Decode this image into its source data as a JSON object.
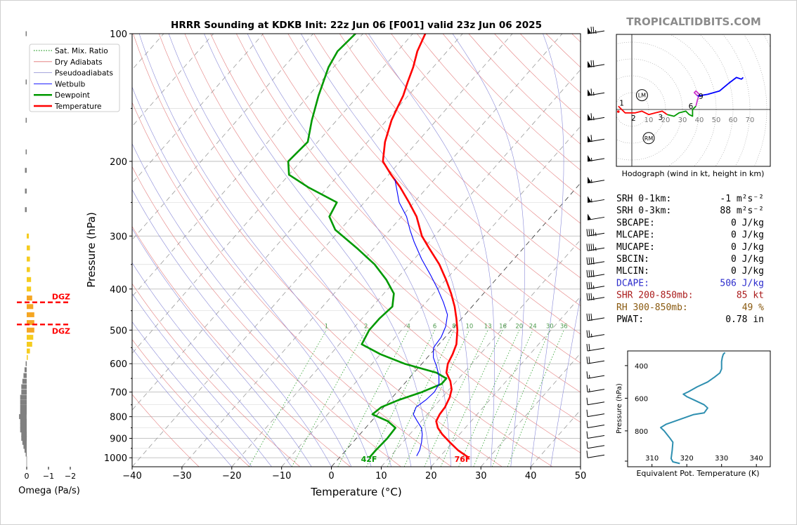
{
  "title": "HRRR Sounding at KDKB Init: 22z Jun 06 [F001] valid 23z Jun 06 2025",
  "watermark": "TROPICALTIDBITS.COM",
  "chart_data": [
    {
      "type": "skew-t",
      "title": "HRRR Sounding at KDKB Init: 22z Jun 06 [F001] valid 23z Jun 06 2025",
      "xlabel": "Temperature (°C)",
      "ylabel": "Pressure (hPa)",
      "xlim": [
        -40,
        50
      ],
      "ylim": [
        1050,
        100
      ],
      "x_ticks": [
        -40,
        -30,
        -20,
        -10,
        0,
        10,
        20,
        30,
        40,
        50
      ],
      "x_tick_labels": [
        "−40",
        "−30",
        "−20",
        "−10",
        "0",
        "10",
        "20",
        "30",
        "40",
        "50"
      ],
      "y_ticks": [
        100,
        200,
        300,
        400,
        500,
        600,
        700,
        800,
        900,
        1000
      ],
      "y_scale": "log",
      "legend": {
        "placement": "top-left",
        "entries": [
          {
            "label": "Sat. Mix. Ratio",
            "color": "#2ca02c",
            "style": "dotted"
          },
          {
            "label": "Dry Adiabats",
            "color": "#e07070",
            "style": "solid"
          },
          {
            "label": "Pseudoadiabats",
            "color": "#9a9ad8",
            "style": "solid"
          },
          {
            "label": "Wetbulb",
            "color": "#0000ff",
            "style": "solid"
          },
          {
            "label": "Dewpoint",
            "color": "#009900",
            "style": "bold"
          },
          {
            "label": "Temperature",
            "color": "#ff0000",
            "style": "bold"
          }
        ]
      },
      "series": [
        {
          "name": "Temperature",
          "color": "#ff0000",
          "points": [
            [
              1000,
              26
            ],
            [
              960,
              22.5
            ],
            [
              920,
              19.5
            ],
            [
              880,
              16.5
            ],
            [
              850,
              14.5
            ],
            [
              820,
              13
            ],
            [
              790,
              12.5
            ],
            [
              760,
              12.3
            ],
            [
              720,
              11.5
            ],
            [
              690,
              10.5
            ],
            [
              660,
              8.8
            ],
            [
              630,
              6.5
            ],
            [
              600,
              5.2
            ],
            [
              570,
              4.5
            ],
            [
              540,
              3.5
            ],
            [
              500,
              1.2
            ],
            [
              470,
              -1.0
            ],
            [
              440,
              -3.5
            ],
            [
              410,
              -6.5
            ],
            [
              380,
              -10
            ],
            [
              350,
              -14
            ],
            [
              320,
              -19
            ],
            [
              300,
              -22.5
            ],
            [
              270,
              -27
            ],
            [
              250,
              -31
            ],
            [
              230,
              -35.5
            ],
            [
              215,
              -39.5
            ],
            [
              200,
              -43.5
            ],
            [
              180,
              -46.5
            ],
            [
              160,
              -49
            ],
            [
              150,
              -50
            ],
            [
              140,
              -51
            ],
            [
              130,
              -52.5
            ],
            [
              120,
              -54
            ],
            [
              110,
              -56
            ],
            [
              100,
              -57.5
            ]
          ]
        },
        {
          "name": "Dewpoint",
          "color": "#009900",
          "points": [
            [
              1000,
              6
            ],
            [
              960,
              6
            ],
            [
              900,
              6.2
            ],
            [
              850,
              6
            ],
            [
              820,
              3.3
            ],
            [
              790,
              -1
            ],
            [
              760,
              -0.5
            ],
            [
              730,
              1.8
            ],
            [
              700,
              5
            ],
            [
              670,
              7.5
            ],
            [
              650,
              7.5
            ],
            [
              630,
              4.5
            ],
            [
              600,
              -3.5
            ],
            [
              570,
              -10
            ],
            [
              540,
              -15.5
            ],
            [
              500,
              -16.5
            ],
            [
              470,
              -16.5
            ],
            [
              440,
              -16
            ],
            [
              410,
              -18
            ],
            [
              380,
              -22
            ],
            [
              350,
              -27
            ],
            [
              320,
              -33.5
            ],
            [
              290,
              -41
            ],
            [
              270,
              -44.5
            ],
            [
              250,
              -45.5
            ],
            [
              230,
              -54
            ],
            [
              215,
              -60
            ],
            [
              200,
              -62.5
            ],
            [
              180,
              -62
            ],
            [
              160,
              -65
            ],
            [
              140,
              -68
            ],
            [
              120,
              -71
            ],
            [
              110,
              -72
            ],
            [
              100,
              -71.5
            ]
          ]
        },
        {
          "name": "Wetbulb",
          "color": "#0000ff",
          "points": [
            [
              990,
              15.2
            ],
            [
              960,
              14.8
            ],
            [
              920,
              13.8
            ],
            [
              880,
              12.5
            ],
            [
              850,
              11.2
            ],
            [
              820,
              9.2
            ],
            [
              790,
              7.2
            ],
            [
              760,
              6.5
            ],
            [
              730,
              7.2
            ],
            [
              700,
              7.5
            ],
            [
              670,
              7
            ],
            [
              640,
              5.5
            ],
            [
              610,
              3.5
            ],
            [
              580,
              1.2
            ],
            [
              550,
              -0.5
            ],
            [
              520,
              -0.8
            ],
            [
              490,
              -1.8
            ],
            [
              460,
              -3.5
            ],
            [
              430,
              -6.5
            ],
            [
              400,
              -10
            ],
            [
              370,
              -14
            ],
            [
              340,
              -18.5
            ],
            [
              310,
              -23
            ],
            [
              290,
              -26
            ],
            [
              270,
              -29
            ],
            [
              250,
              -33
            ],
            [
              220,
              -38
            ]
          ]
        }
      ],
      "surface_labels": {
        "temperature": "76F",
        "dewpoint": "42F"
      },
      "mixing_ratio_labels": [
        "1",
        "2",
        "4",
        "6",
        "8",
        "10",
        "13",
        "16",
        "20",
        "24",
        "30",
        "36"
      ],
      "wind_barbs": [
        {
          "p": 100,
          "speed": 75
        },
        {
          "p": 120,
          "speed": 70
        },
        {
          "p": 140,
          "speed": 65
        },
        {
          "p": 160,
          "speed": 65
        },
        {
          "p": 180,
          "speed": 60
        },
        {
          "p": 200,
          "speed": 55
        },
        {
          "p": 225,
          "speed": 55
        },
        {
          "p": 250,
          "speed": 55
        },
        {
          "p": 275,
          "speed": 50
        },
        {
          "p": 300,
          "speed": 45
        },
        {
          "p": 325,
          "speed": 45
        },
        {
          "p": 350,
          "speed": 40
        },
        {
          "p": 375,
          "speed": 40
        },
        {
          "p": 400,
          "speed": 35
        },
        {
          "p": 425,
          "speed": 35
        },
        {
          "p": 475,
          "speed": 30
        },
        {
          "p": 520,
          "speed": 25
        },
        {
          "p": 560,
          "speed": 20
        },
        {
          "p": 600,
          "speed": 20
        },
        {
          "p": 650,
          "speed": 15
        },
        {
          "p": 700,
          "speed": 15
        },
        {
          "p": 750,
          "speed": 10
        },
        {
          "p": 800,
          "speed": 10
        },
        {
          "p": 850,
          "speed": 10
        },
        {
          "p": 900,
          "speed": 10
        },
        {
          "p": 950,
          "speed": 10
        },
        {
          "p": 1000,
          "speed": 10
        }
      ]
    },
    {
      "type": "bar",
      "xlabel": "Omega (Pa/s)",
      "x_tick_labels": [
        "0",
        "−1",
        "−2"
      ],
      "xlim": [
        0,
        -2
      ],
      "dgz_labels": [
        "DGZ",
        "DGZ"
      ],
      "dgz_bounds_hpa": [
        430,
        485
      ],
      "bars": [
        {
          "p": 100,
          "value": 0.05
        },
        {
          "p": 130,
          "value": 0.05
        },
        {
          "p": 160,
          "value": 0.05
        },
        {
          "p": 190,
          "value": 0.05
        },
        {
          "p": 210,
          "value": 0.08
        },
        {
          "p": 235,
          "value": 0.08
        },
        {
          "p": 260,
          "value": 0.08
        },
        {
          "p": 300,
          "value": -0.1
        },
        {
          "p": 320,
          "value": -0.15
        },
        {
          "p": 340,
          "value": -0.15
        },
        {
          "p": 360,
          "value": -0.15
        },
        {
          "p": 380,
          "value": -0.2
        },
        {
          "p": 400,
          "value": -0.2
        },
        {
          "p": 420,
          "value": -0.25
        },
        {
          "p": 440,
          "value": -0.3
        },
        {
          "p": 460,
          "value": -0.35
        },
        {
          "p": 480,
          "value": -0.35
        },
        {
          "p": 500,
          "value": -0.35
        },
        {
          "p": 520,
          "value": -0.3
        },
        {
          "p": 540,
          "value": -0.25
        },
        {
          "p": 560,
          "value": -0.15
        },
        {
          "p": 580,
          "value": -0.05
        },
        {
          "p": 600,
          "value": 0.05
        },
        {
          "p": 620,
          "value": 0.1
        },
        {
          "p": 640,
          "value": 0.15
        },
        {
          "p": 660,
          "value": 0.2
        },
        {
          "p": 680,
          "value": 0.25
        },
        {
          "p": 700,
          "value": 0.25
        },
        {
          "p": 720,
          "value": 0.3
        },
        {
          "p": 740,
          "value": 0.3
        },
        {
          "p": 760,
          "value": 0.3
        },
        {
          "p": 780,
          "value": 0.3
        },
        {
          "p": 800,
          "value": 0.35
        },
        {
          "p": 820,
          "value": 0.3
        },
        {
          "p": 840,
          "value": 0.3
        },
        {
          "p": 860,
          "value": 0.3
        },
        {
          "p": 880,
          "value": 0.25
        },
        {
          "p": 900,
          "value": 0.25
        },
        {
          "p": 920,
          "value": 0.2
        },
        {
          "p": 940,
          "value": 0.15
        },
        {
          "p": 960,
          "value": 0.1
        },
        {
          "p": 980,
          "value": 0.05
        }
      ]
    },
    {
      "type": "line",
      "title": "Hodograph (wind in kt, height in km)",
      "ring_labels": [
        "10",
        "20",
        "30",
        "40",
        "50",
        "60",
        "70"
      ],
      "markers": [
        "LM",
        "RM"
      ],
      "series": [
        {
          "color": "#ff0000",
          "km_labels": [
            "1",
            "2",
            "3"
          ],
          "points": [
            [
              -8,
              2
            ],
            [
              -4,
              -2
            ],
            [
              2,
              -2
            ],
            [
              6,
              -1
            ],
            [
              10,
              -3
            ],
            [
              14,
              -2
            ],
            [
              18,
              -1
            ],
            [
              21,
              -3
            ]
          ]
        },
        {
          "color": "#009900",
          "km_labels": [],
          "points": [
            [
              21,
              -3
            ],
            [
              25,
              -4
            ],
            [
              28,
              -2
            ],
            [
              32,
              -1
            ],
            [
              34,
              -3
            ],
            [
              36,
              -4
            ],
            [
              36,
              0
            ],
            [
              37,
              1
            ],
            [
              38,
              2
            ]
          ]
        },
        {
          "color": "#cc33cc",
          "km_labels": [
            "6"
          ],
          "points": [
            [
              38,
              2
            ],
            [
              39,
              6
            ],
            [
              40,
              9
            ],
            [
              38,
              11
            ],
            [
              37,
              10
            ],
            [
              39,
              8
            ]
          ]
        },
        {
          "color": "#0000ff",
          "km_labels": [
            "9"
          ],
          "points": [
            [
              39,
              8
            ],
            [
              45,
              9
            ],
            [
              52,
              11
            ],
            [
              58,
              16
            ],
            [
              62,
              19
            ],
            [
              65,
              18
            ],
            [
              66,
              19
            ]
          ]
        }
      ]
    },
    {
      "type": "line",
      "xlabel": "Equivalent Pot. Temperature (K)",
      "ylabel": "Pressure (hPa)",
      "x_ticks": [
        310,
        320,
        330,
        340
      ],
      "y_ticks": [
        400,
        600,
        800
      ],
      "xlim": [
        303,
        344
      ],
      "ylim": [
        1020,
        310
      ],
      "series": [
        {
          "color": "#2e8fb0",
          "points": [
            [
              1000,
              318
            ],
            [
              990,
              316
            ],
            [
              970,
              315.5
            ],
            [
              920,
              315.8
            ],
            [
              870,
              316
            ],
            [
              840,
              315
            ],
            [
              800,
              313.5
            ],
            [
              780,
              312.5
            ],
            [
              760,
              314
            ],
            [
              730,
              318
            ],
            [
              700,
              322
            ],
            [
              690,
              325
            ],
            [
              660,
              326
            ],
            [
              640,
              325
            ],
            [
              610,
              322
            ],
            [
              590,
              320
            ],
            [
              575,
              319
            ],
            [
              560,
              320.5
            ],
            [
              530,
              323
            ],
            [
              500,
              326
            ],
            [
              470,
              328
            ],
            [
              445,
              329.5
            ],
            [
              420,
              330
            ],
            [
              400,
              330
            ],
            [
              375,
              330
            ],
            [
              350,
              330.2
            ],
            [
              330,
              330.5
            ],
            [
              320,
              331
            ]
          ]
        }
      ]
    }
  ],
  "stats": [
    {
      "label": "SRH 0-1km:",
      "value": "-1 m²s⁻²",
      "color": "#000000"
    },
    {
      "label": "SRH 0-3km:",
      "value": "88 m²s⁻²",
      "color": "#000000"
    },
    {
      "label": "SBCAPE:",
      "value": "0 J/kg",
      "color": "#000000"
    },
    {
      "label": "MLCAPE:",
      "value": "0 J/kg",
      "color": "#000000"
    },
    {
      "label": "MUCAPE:",
      "value": "0 J/kg",
      "color": "#000000"
    },
    {
      "label": "SBCIN:",
      "value": "0 J/kg",
      "color": "#000000"
    },
    {
      "label": "MLCIN:",
      "value": "0 J/kg",
      "color": "#000000"
    },
    {
      "label": "DCAPE:",
      "value": "506 J/kg",
      "color": "#2c2ccc"
    },
    {
      "label": "SHR 200-850mb:",
      "value": "85 kt",
      "color": "#aa1a1a"
    },
    {
      "label": "RH 300-850mb:",
      "value": "49 %",
      "color": "#8a5a10"
    },
    {
      "label": "PWAT:",
      "value": "0.78 in",
      "color": "#000000"
    }
  ]
}
